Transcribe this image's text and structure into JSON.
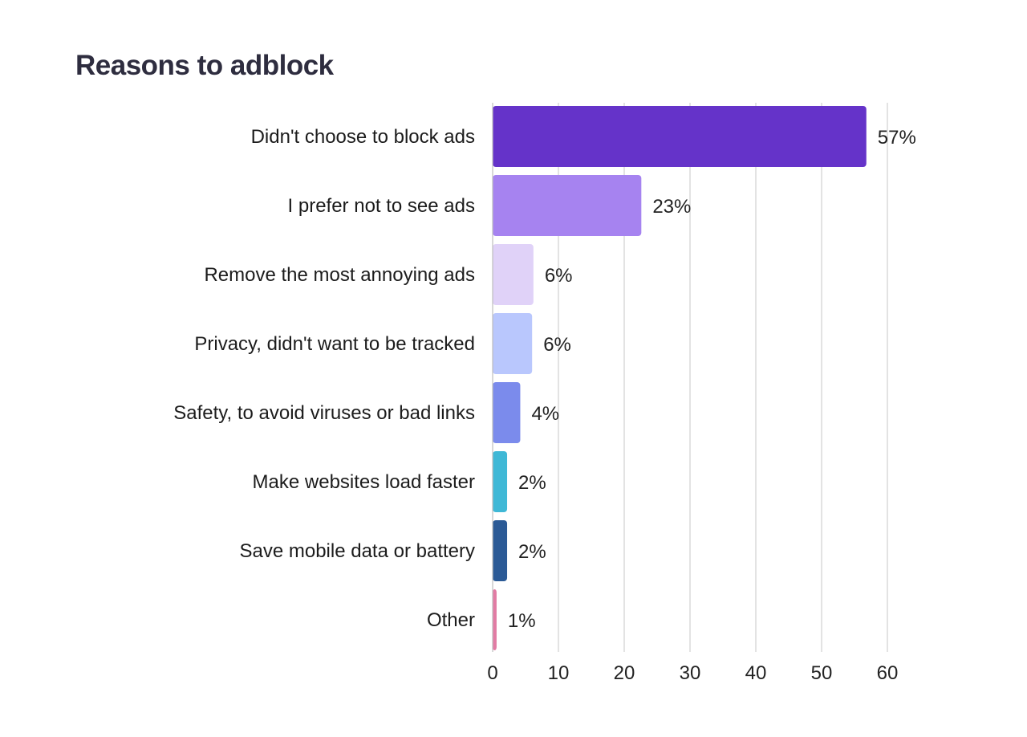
{
  "chart_data": {
    "type": "bar",
    "orientation": "horizontal",
    "title": "Reasons to adblock",
    "xlabel": "",
    "ylabel": "",
    "categories": [
      "Didn't choose to block ads",
      "I prefer not to see ads",
      "Remove the most annoying ads",
      "Privacy, didn't want to be tracked",
      "Safety, to avoid viruses or bad links",
      "Make websites load faster",
      "Save mobile data or battery",
      "Other"
    ],
    "values": [
      56.8,
      22.6,
      6.2,
      6.0,
      4.2,
      2.2,
      2.2,
      0.6
    ],
    "value_labels": [
      "57%",
      "23%",
      "6%",
      "6%",
      "4%",
      "2%",
      "2%",
      "1%"
    ],
    "colors": [
      "#6533c9",
      "#a683f0",
      "#e0d2f8",
      "#b9c7fd",
      "#7b8bec",
      "#3fb8d6",
      "#2b5a96",
      "#e27ba4"
    ],
    "xlim": [
      0,
      60
    ],
    "xticks": [
      0,
      10,
      20,
      30,
      40,
      50,
      60
    ],
    "grid": true,
    "legend": "none"
  }
}
